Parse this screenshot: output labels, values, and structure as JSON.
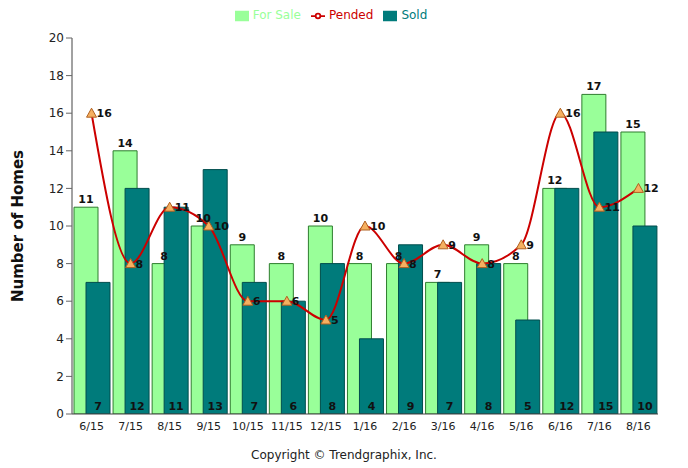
{
  "chart_data": {
    "type": "bar",
    "y_label": "Number of Homes",
    "annotation": "Copyright © Trendgraphix, Inc.",
    "categories": [
      "6/15",
      "7/15",
      "8/15",
      "9/15",
      "10/15",
      "11/15",
      "12/15",
      "1/16",
      "2/16",
      "3/16",
      "4/16",
      "5/16",
      "6/16",
      "7/16",
      "8/16"
    ],
    "series": [
      {
        "name": "For Sale",
        "type": "bar",
        "color": "#99ff99",
        "values": [
          11,
          14,
          8,
          10,
          9,
          8,
          10,
          8,
          8,
          7,
          9,
          8,
          12,
          17,
          15
        ]
      },
      {
        "name": "Sold",
        "type": "bar",
        "color": "#007b7b",
        "values": [
          7,
          12,
          11,
          13,
          7,
          6,
          8,
          4,
          9,
          7,
          8,
          5,
          12,
          15,
          10
        ]
      },
      {
        "name": "Pended",
        "type": "line",
        "color": "#cc0000",
        "marker": "triangle",
        "line_style": "smooth",
        "values": [
          16,
          8,
          11,
          10,
          6,
          6,
          5,
          10,
          8,
          9,
          8,
          9,
          16,
          11,
          12
        ]
      }
    ],
    "ylim": [
      0,
      20
    ],
    "yticks": [
      0,
      2,
      4,
      6,
      8,
      10,
      12,
      14,
      16,
      18,
      20
    ],
    "grid": false,
    "legend": "top",
    "data_labels": true
  }
}
